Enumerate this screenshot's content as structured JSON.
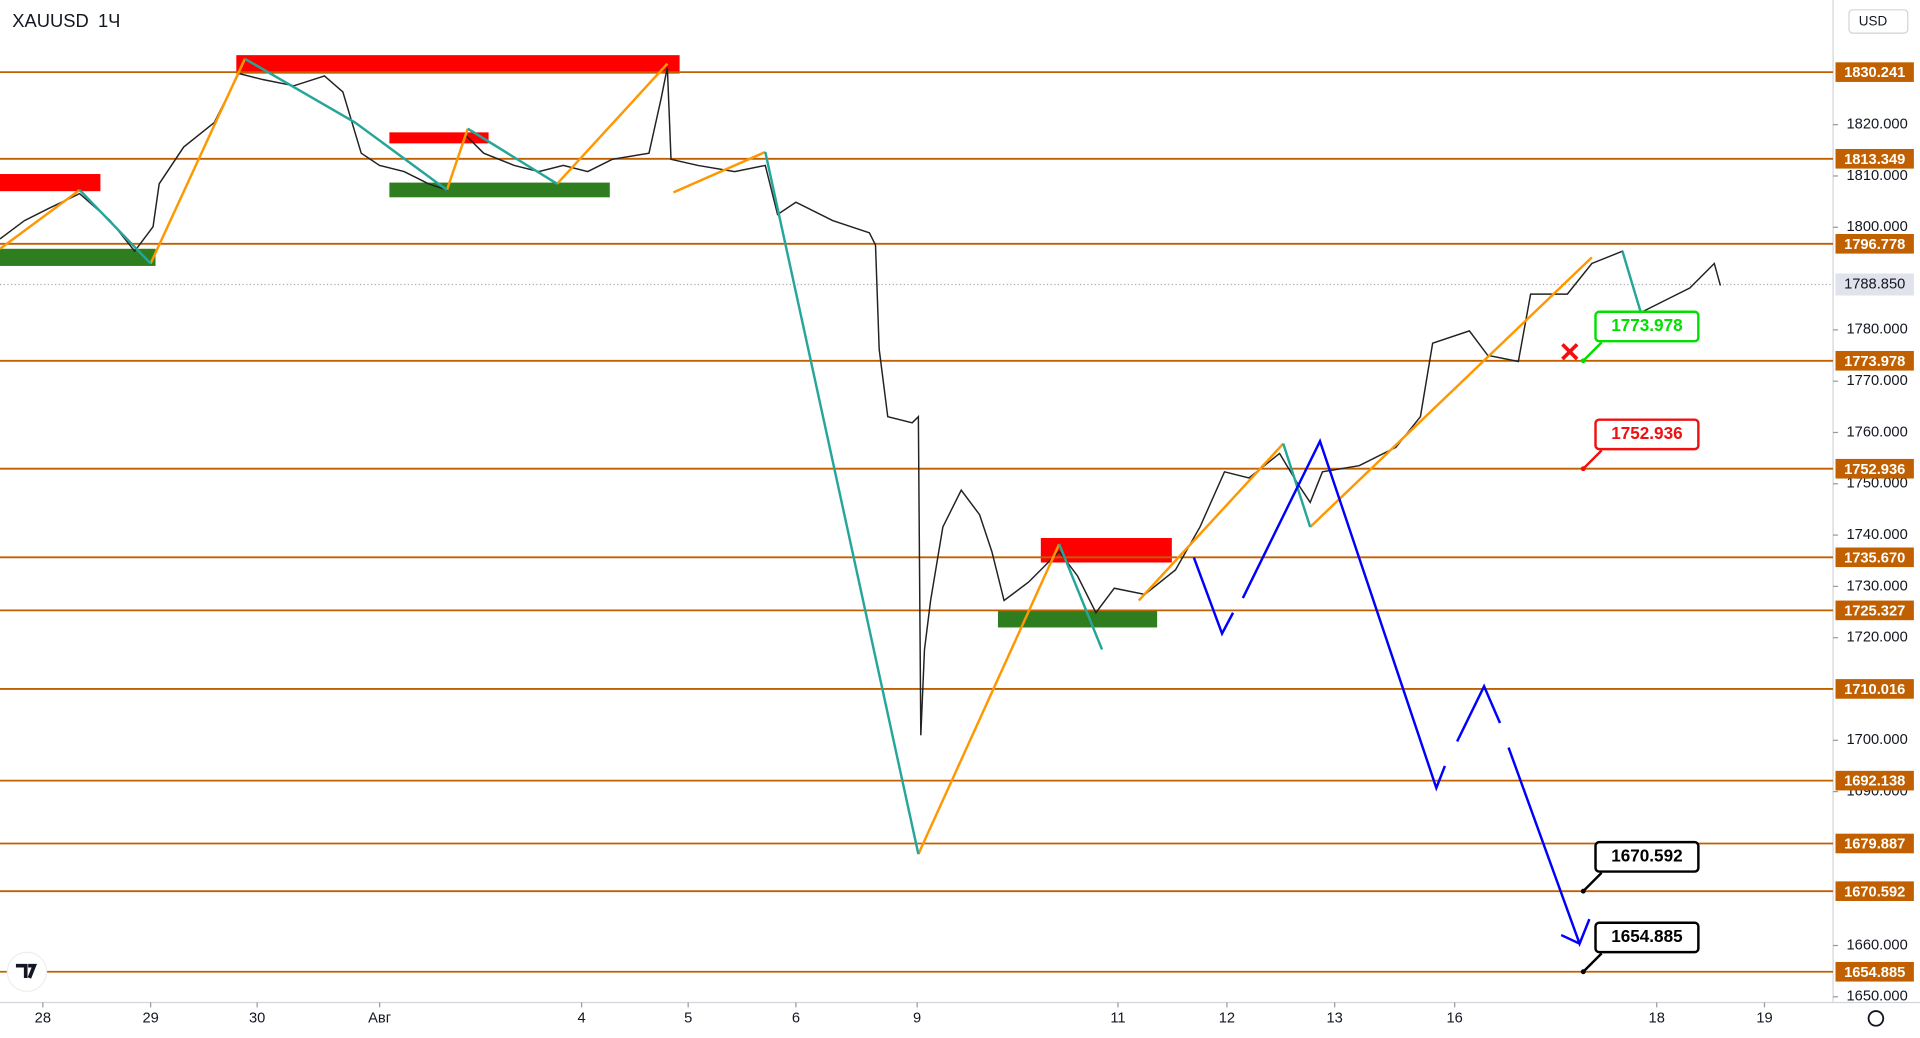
{
  "chart_data": {
    "type": "levels",
    "title": "XAUUSD",
    "interval": "1Ч",
    "currency": "USD",
    "ylim": [
      1648.9,
      1844.3
    ],
    "yticks": [
      {
        "value": 1650,
        "label": "1650.000"
      },
      {
        "value": 1660,
        "label": "1660.000"
      },
      {
        "value": 1690,
        "label": "1690.000"
      },
      {
        "value": 1700,
        "label": "1700.000"
      },
      {
        "value": 1720,
        "label": "1720.000"
      },
      {
        "value": 1730,
        "label": "1730.000"
      },
      {
        "value": 1740,
        "label": "1740.000"
      },
      {
        "value": 1750,
        "label": "1750.000"
      },
      {
        "value": 1760,
        "label": "1760.000"
      },
      {
        "value": 1770,
        "label": "1770.000"
      },
      {
        "value": 1780,
        "label": "1780.000"
      },
      {
        "value": 1800,
        "label": "1800.000"
      },
      {
        "value": 1810,
        "label": "1810.000"
      },
      {
        "value": 1820,
        "label": "1820.000"
      }
    ],
    "levels": [
      1830.241,
      1813.349,
      1796.778,
      1773.978,
      1752.936,
      {
        "value": 1735.67,
        "label": "1735.670"
      },
      1725.327,
      1710.016,
      1692.138,
      1679.887,
      1670.592,
      1654.885
    ],
    "level_color": "#c06000",
    "last_price": {
      "value": 1788.85,
      "label": "1788.850"
    },
    "callouts": [
      {
        "value": 1773.978,
        "color": "#00e000"
      },
      {
        "value": 1752.936,
        "color": "#f01010"
      },
      {
        "value": 1670.592,
        "color": "#000000"
      },
      {
        "value": 1654.885,
        "color": "#000000"
      }
    ],
    "x_labels": [
      "28",
      "29",
      "30",
      "Авг",
      "4",
      "5",
      "6",
      "9",
      "11",
      "12",
      "13",
      "16",
      "18",
      "19"
    ]
  }
}
